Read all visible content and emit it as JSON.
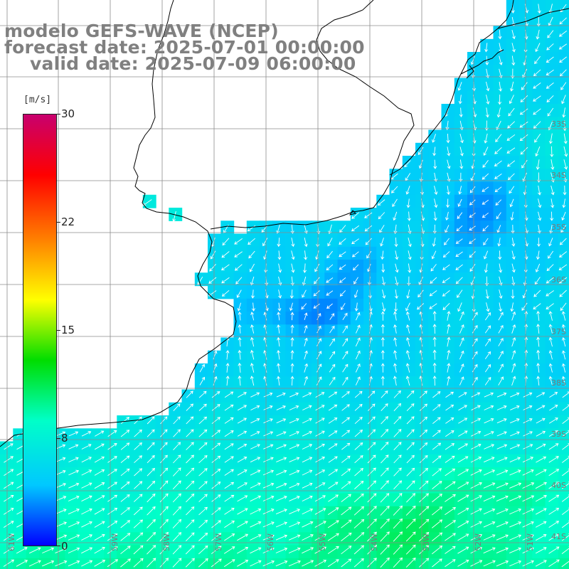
{
  "title": {
    "model": "modelo GEFS-WAVE (NCEP)",
    "forecast": "forecast date: 2025-07-01 00:00:00",
    "valid": "valid date: 2025-07-09 06:00:00"
  },
  "colorbar": {
    "unit": "[m/s]",
    "ticks": [
      "30",
      "22",
      "15",
      "8",
      "0"
    ],
    "tick_values": [
      30,
      22,
      15,
      8,
      0
    ],
    "min": 0,
    "max": 30,
    "colors": [
      "#0000ff",
      "#00c8ff",
      "#00ffc8",
      "#00dd00",
      "#ffff00",
      "#ff8000",
      "#ff0000",
      "#c8006e"
    ]
  },
  "lon_labels": [
    "61W",
    "59W",
    "58W",
    "57W",
    "56W",
    "55W",
    "54W",
    "53W",
    "52W",
    "51W"
  ],
  "lat_labels": [
    "33S",
    "34S",
    "35S",
    "36S",
    "37S",
    "38S",
    "39S",
    "40S",
    "41S"
  ],
  "wind_field": {
    "variable": "wind speed",
    "range_shown": [
      3,
      11
    ],
    "direction": "arrows point roughly toward north-east offshore, southward/south-west along coast"
  },
  "colors": {
    "land": "#ffffff",
    "coast": "#000000",
    "grid": "#8c8c8c",
    "title": "#808080"
  }
}
